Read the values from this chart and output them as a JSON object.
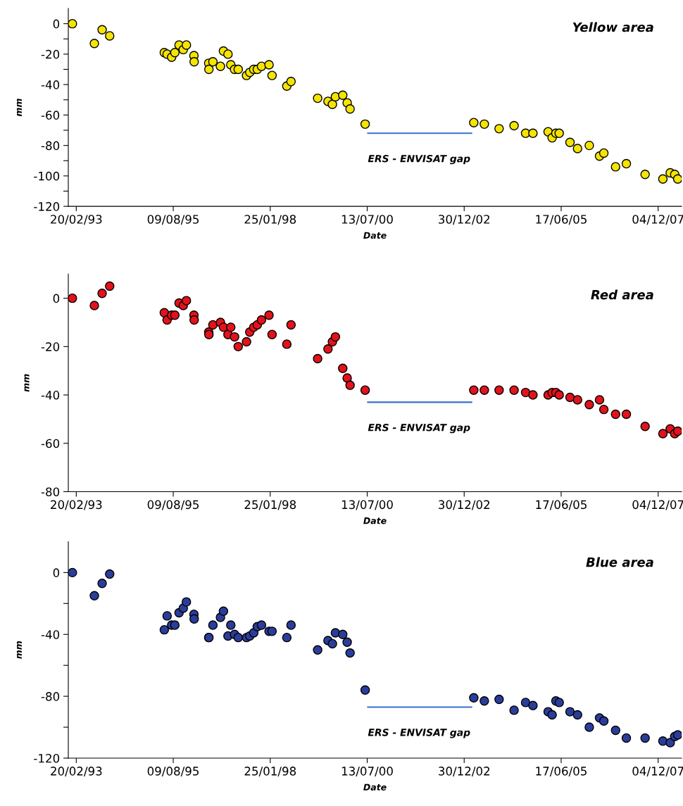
{
  "chart_data": [
    {
      "type": "scatter",
      "title": "Yellow area",
      "xlabel": "Date",
      "ylabel": "mm",
      "x": [
        "1993-01-15",
        "1993-08-07",
        "1993-10-18",
        "1993-12-27",
        "1995-05-18",
        "1995-06-13",
        "1995-07-25",
        "1995-08-24",
        "1995-10-02",
        "1995-11-10",
        "1995-12-09",
        "1996-02-17",
        "1996-02-19",
        "1996-07-03",
        "1996-07-05",
        "1996-08-11",
        "1996-10-20",
        "1996-11-17",
        "1996-12-29",
        "1997-01-24",
        "1997-02-28",
        "1997-04-03",
        "1997-06-19",
        "1997-07-19",
        "1997-08-25",
        "1997-09-27",
        "1997-11-05",
        "1998-01-14",
        "1998-02-11",
        "1998-06-28",
        "1998-08-06",
        "1999-04-10",
        "1999-07-15",
        "1999-08-25",
        "1999-09-22",
        "1999-11-29",
        "2000-01-09",
        "2000-02-05",
        "2000-06-24",
        "2003-03-29",
        "2003-07-05",
        "2003-11-19",
        "2004-04-06",
        "2004-07-22",
        "2004-09-28",
        "2005-02-16",
        "2005-03-25",
        "2005-04-29",
        "2005-05-30",
        "2005-09-07",
        "2005-11-16",
        "2006-03-05",
        "2006-06-08",
        "2006-07-18",
        "2006-11-04",
        "2007-02-12",
        "2007-08-05",
        "2008-01-17",
        "2008-03-25",
        "2008-05-06",
        "2008-06-03"
      ],
      "series": [
        {
          "marker": "circle",
          "color": "#f5e400",
          "values": [
            0,
            -13,
            -4,
            -8,
            -19,
            -20,
            -22,
            -19,
            -14,
            -17,
            -14,
            -21,
            -25,
            -26,
            -30,
            -25,
            -28,
            -18,
            -20,
            -27,
            -30,
            -30,
            -34,
            -32,
            -30,
            -30,
            -28,
            -27,
            -34,
            -41,
            -38,
            -49,
            -51,
            -53,
            -48,
            -47,
            -52,
            -56,
            -66,
            -65,
            -66,
            -69,
            -67,
            -72,
            -72,
            -71,
            -75,
            -72,
            -72,
            -78,
            -82,
            -80,
            -87,
            -85,
            -94,
            -92,
            -99,
            -102,
            -98,
            -99,
            -102
          ]
        },
        {
          "type": "line",
          "color": "#3a6fd0",
          "x": [
            "2000-07-19",
            "2003-03-08"
          ],
          "values": [
            -72,
            -72
          ]
        }
      ],
      "annotations": [
        {
          "text": "ERS - ENVISAT gap",
          "x": "2000-07-19",
          "y": -72
        }
      ],
      "xlim": [
        "1992-12-08",
        "2008-07-09"
      ],
      "xticks": [
        {
          "value": "1993-02-20",
          "label": "20/02/93"
        },
        {
          "value": "1995-08-09",
          "label": "09/08/95"
        },
        {
          "value": "1998-01-25",
          "label": "25/01/98"
        },
        {
          "value": "2000-07-13",
          "label": "13/07/00"
        },
        {
          "value": "2002-12-30",
          "label": "30/12/02"
        },
        {
          "value": "2005-06-17",
          "label": "17/06/05"
        },
        {
          "value": "2007-12-04",
          "label": "04/12/07"
        }
      ],
      "ylim": [
        -120,
        10
      ],
      "yticks": [
        0,
        {
          "value": -10,
          "label": null
        },
        -20,
        {
          "value": -30,
          "label": null
        },
        -40,
        {
          "value": -50,
          "label": null
        },
        -60,
        {
          "value": -70,
          "label": null
        },
        -80,
        {
          "value": -90,
          "label": null
        },
        -100,
        {
          "value": -110,
          "label": null
        },
        -120
      ]
    },
    {
      "type": "scatter",
      "title": "Red area",
      "xlabel": "Date",
      "ylabel": "mm",
      "x": [
        "1993-01-15",
        "1993-08-07",
        "1993-10-18",
        "1993-12-27",
        "1995-05-18",
        "1995-06-13",
        "1995-07-25",
        "1995-08-24",
        "1995-10-02",
        "1995-11-10",
        "1995-12-09",
        "1996-02-17",
        "1996-02-19",
        "1996-07-03",
        "1996-07-05",
        "1996-08-11",
        "1996-10-20",
        "1996-11-17",
        "1996-12-29",
        "1997-01-24",
        "1997-02-28",
        "1997-04-03",
        "1997-06-19",
        "1997-07-19",
        "1997-08-25",
        "1997-09-27",
        "1997-11-05",
        "1998-01-14",
        "1998-02-11",
        "1998-06-28",
        "1998-08-06",
        "1999-04-10",
        "1999-07-15",
        "1999-08-25",
        "1999-09-22",
        "1999-11-29",
        "2000-01-09",
        "2000-02-05",
        "2000-06-24",
        "2003-03-29",
        "2003-07-05",
        "2003-11-19",
        "2004-04-06",
        "2004-07-22",
        "2004-09-28",
        "2005-02-16",
        "2005-03-25",
        "2005-04-29",
        "2005-05-30",
        "2005-09-07",
        "2005-11-16",
        "2006-03-05",
        "2006-06-08",
        "2006-07-18",
        "2006-11-04",
        "2007-02-12",
        "2007-08-05",
        "2008-01-17",
        "2008-03-25",
        "2008-05-06",
        "2008-06-03"
      ],
      "series": [
        {
          "marker": "circle",
          "color": "#e3121b",
          "values": [
            0,
            -3,
            2,
            5,
            -6,
            -9,
            -7,
            -7,
            -2,
            -3,
            -1,
            -7,
            -9,
            -14,
            -15,
            -11,
            -10,
            -12,
            -15,
            -12,
            -16,
            -20,
            -18,
            -14,
            -12,
            -11,
            -9,
            -7,
            -15,
            -19,
            -11,
            -25,
            -21,
            -18,
            -16,
            -29,
            -33,
            -36,
            -38,
            -38,
            -38,
            -38,
            -38,
            -39,
            -40,
            -40,
            -39,
            -39,
            -40,
            -41,
            -42,
            -44,
            -42,
            -46,
            -48,
            -48,
            -53,
            -56,
            -54,
            -56,
            -55
          ]
        },
        {
          "type": "line",
          "color": "#3a6fd0",
          "x": [
            "2000-07-19",
            "2003-03-08"
          ],
          "values": [
            -43,
            -43
          ]
        }
      ],
      "annotations": [
        {
          "text": "ERS - ENVISAT gap",
          "x": "2000-07-19",
          "y": -43
        }
      ],
      "xlim": [
        "1992-12-08",
        "2008-07-09"
      ],
      "xticks": [
        {
          "value": "1993-02-20",
          "label": "20/02/93"
        },
        {
          "value": "1995-08-09",
          "label": "09/08/95"
        },
        {
          "value": "1998-01-25",
          "label": "25/01/98"
        },
        {
          "value": "2000-07-13",
          "label": "13/07/00"
        },
        {
          "value": "2002-12-30",
          "label": "30/12/02"
        },
        {
          "value": "2005-06-17",
          "label": "17/06/05"
        },
        {
          "value": "2007-12-04",
          "label": "04/12/07"
        }
      ],
      "ylim": [
        -80,
        10
      ],
      "yticks": [
        0,
        -20,
        -40,
        -60,
        -80
      ]
    },
    {
      "type": "scatter",
      "title": "Blue area",
      "xlabel": "Date",
      "ylabel": "mm",
      "x": [
        "1993-01-15",
        "1993-08-07",
        "1993-10-18",
        "1993-12-27",
        "1995-05-18",
        "1995-06-13",
        "1995-07-25",
        "1995-08-24",
        "1995-10-02",
        "1995-11-10",
        "1995-12-09",
        "1996-02-17",
        "1996-02-19",
        "1996-07-03",
        "1996-07-05",
        "1996-08-11",
        "1996-10-20",
        "1996-11-17",
        "1996-12-29",
        "1997-01-24",
        "1997-02-28",
        "1997-04-03",
        "1997-06-19",
        "1997-07-19",
        "1997-08-25",
        "1997-09-27",
        "1997-11-05",
        "1998-01-14",
        "1998-02-11",
        "1998-06-28",
        "1998-08-06",
        "1999-04-10",
        "1999-07-15",
        "1999-08-25",
        "1999-09-22",
        "1999-11-29",
        "2000-01-09",
        "2000-02-05",
        "2000-06-24",
        "2003-03-29",
        "2003-07-05",
        "2003-11-19",
        "2004-04-06",
        "2004-07-22",
        "2004-09-28",
        "2005-02-16",
        "2005-03-25",
        "2005-04-29",
        "2005-05-30",
        "2005-09-07",
        "2005-11-16",
        "2006-03-05",
        "2006-06-08",
        "2006-07-18",
        "2006-11-04",
        "2007-02-12",
        "2007-08-05",
        "2008-01-17",
        "2008-03-25",
        "2008-05-06",
        "2008-06-03"
      ],
      "series": [
        {
          "marker": "circle",
          "color": "#2b3d9a",
          "values": [
            0,
            -15,
            -7,
            -1,
            -37,
            -28,
            -34,
            -34,
            -26,
            -23,
            -19,
            -27,
            -30,
            -42,
            -42,
            -34,
            -29,
            -25,
            -41,
            -34,
            -40,
            -42,
            -42,
            -41,
            -39,
            -35,
            -34,
            -38,
            -38,
            -42,
            -34,
            -50,
            -44,
            -46,
            -39,
            -40,
            -45,
            -52,
            -76,
            -81,
            -83,
            -82,
            -89,
            -84,
            -86,
            -90,
            -92,
            -83,
            -84,
            -90,
            -92,
            -100,
            -94,
            -96,
            -102,
            -107,
            -107,
            -109,
            -110,
            -106,
            -105
          ]
        },
        {
          "type": "line",
          "color": "#3a6fd0",
          "x": [
            "2000-07-19",
            "2003-03-08"
          ],
          "values": [
            -87,
            -87
          ]
        }
      ],
      "annotations": [
        {
          "text": "ERS - ENVISAT gap",
          "x": "2000-07-19",
          "y": -87
        }
      ],
      "xlim": [
        "1992-12-08",
        "2008-07-09"
      ],
      "xticks": [
        {
          "value": "1993-02-20",
          "label": "20/02/93"
        },
        {
          "value": "1995-08-09",
          "label": "09/08/95"
        },
        {
          "value": "1998-01-25",
          "label": "25/01/98"
        },
        {
          "value": "2000-07-13",
          "label": "13/07/00"
        },
        {
          "value": "2002-12-30",
          "label": "30/12/02"
        },
        {
          "value": "2005-06-17",
          "label": "17/06/05"
        },
        {
          "value": "2007-12-04",
          "label": "04/12/07"
        }
      ],
      "ylim": [
        -120,
        20
      ],
      "yticks": [
        0,
        {
          "value": -20,
          "label": null
        },
        -40,
        {
          "value": -60,
          "label": null
        },
        -80,
        {
          "value": -100,
          "label": null
        },
        -120
      ]
    }
  ]
}
